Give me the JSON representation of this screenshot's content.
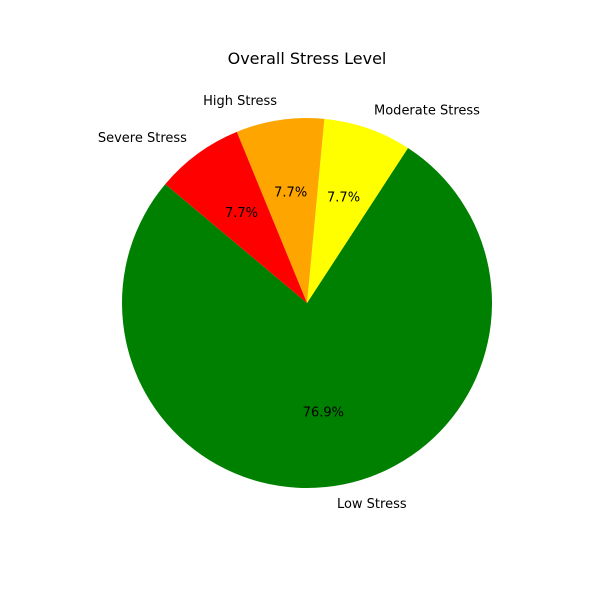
{
  "chart_data": {
    "type": "pie",
    "title": "Overall Stress Level",
    "slices": [
      {
        "label": "Low Stress",
        "percent_label": "76.9%",
        "value": 10,
        "color": "#008000"
      },
      {
        "label": "Moderate Stress",
        "percent_label": "7.7%",
        "value": 1,
        "color": "#ffff00"
      },
      {
        "label": "High Stress",
        "percent_label": "7.7%",
        "value": 1,
        "color": "#ffa500"
      },
      {
        "label": "Severe Stress",
        "percent_label": "7.7%",
        "value": 1,
        "color": "#ff0000"
      }
    ],
    "start_angle_deg": 140,
    "direction": "counterclockwise"
  }
}
